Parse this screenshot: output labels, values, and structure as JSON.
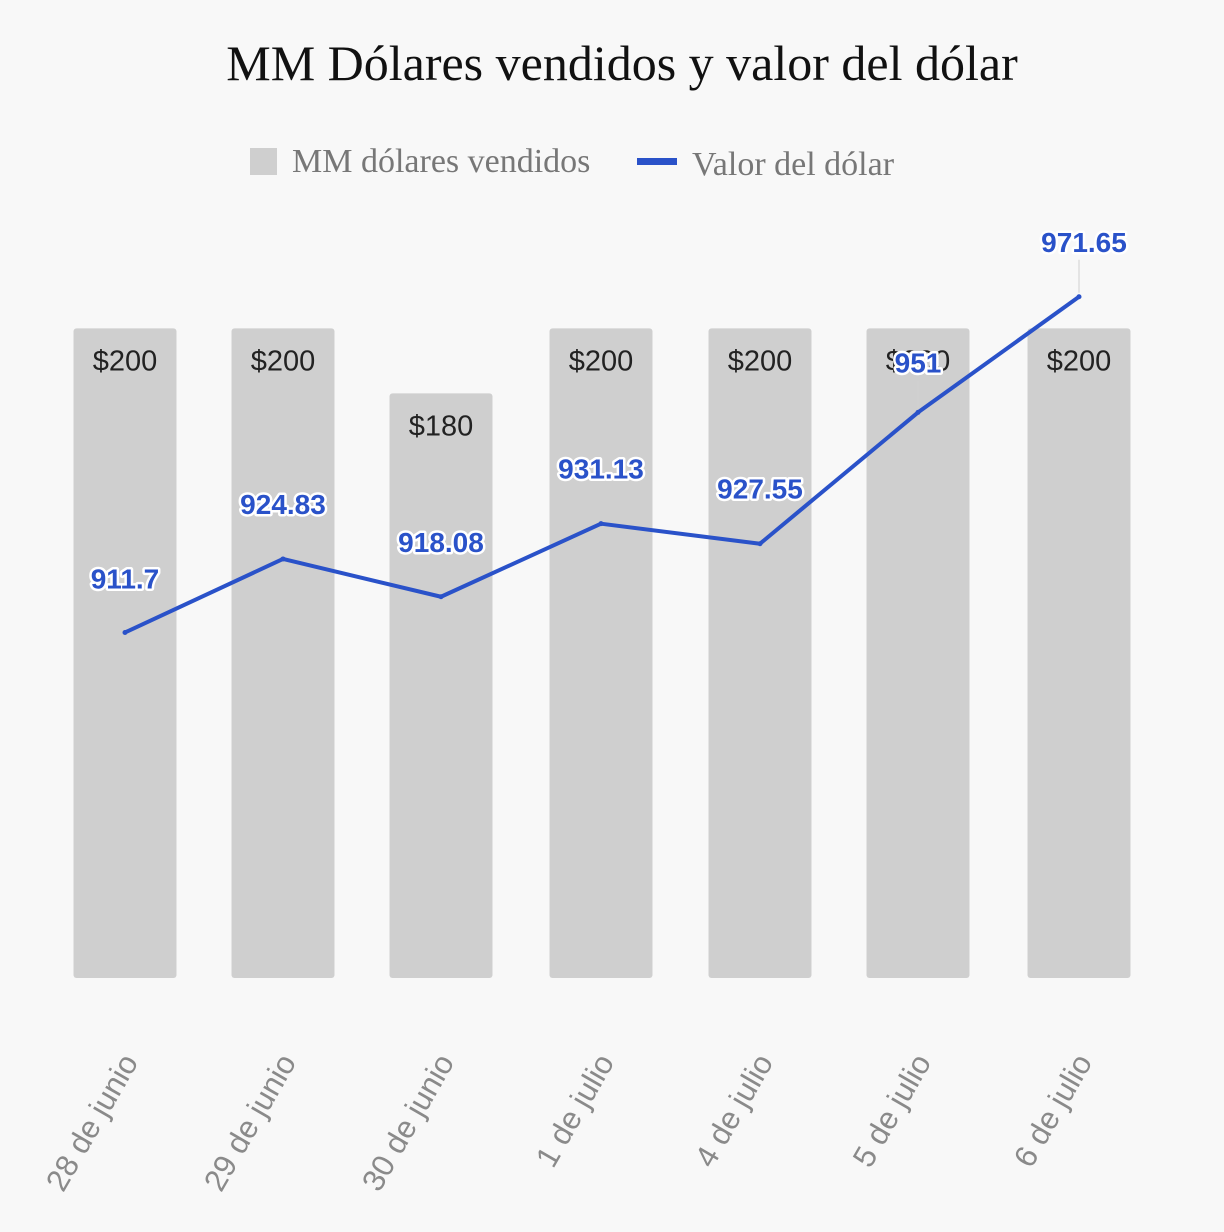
{
  "chart_data": {
    "type": "bar",
    "title": "MM Dólares vendidos y valor del dólar",
    "categories": [
      "28 de junio",
      "29 de junio",
      "30 de junio",
      "1 de julio",
      "4 de julio",
      "5 de julio",
      "6 de julio"
    ],
    "series": [
      {
        "name": "MM dólares vendidos",
        "type": "bar",
        "values": [
          200,
          200,
          180,
          200,
          200,
          200,
          200
        ],
        "labels": [
          "$200",
          "$200",
          "$180",
          "$200",
          "$200",
          "$200",
          "$200"
        ],
        "color": "#cfcfcf",
        "ylim": [
          0,
          250
        ]
      },
      {
        "name": "Valor del dólar",
        "type": "line",
        "values": [
          911.7,
          924.83,
          918.08,
          931.13,
          927.55,
          951,
          971.65
        ],
        "labels": [
          "911.7",
          "924.83",
          "918.08",
          "931.13",
          "927.55",
          "951",
          "971.65"
        ],
        "color": "#2a52c9",
        "ylim": [
          850,
          995
        ]
      }
    ],
    "legend": "top",
    "grid": false
  }
}
